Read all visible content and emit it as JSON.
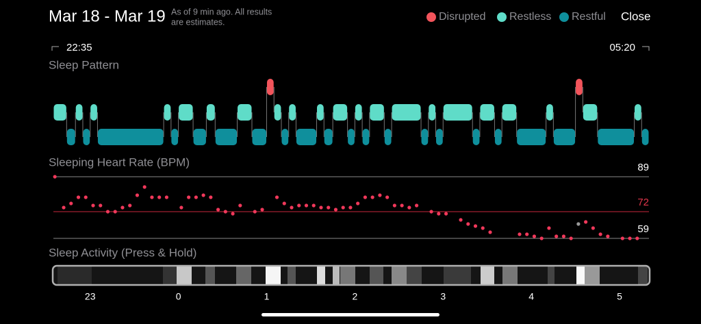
{
  "header": {
    "title": "Mar 18 - Mar 19",
    "note": [
      "As of 9 min ago. All results",
      "are estimates."
    ],
    "legend": [
      {
        "name": "Disrupted",
        "color": "#f2545b"
      },
      {
        "name": "Restless",
        "color": "#5fdcc8"
      },
      {
        "name": "Restful",
        "color": "#0f8f9c"
      }
    ],
    "close": "Close"
  },
  "time_range": {
    "start": "22:35",
    "end": "05:20"
  },
  "sleep_pattern": {
    "title": "Sleep Pattern",
    "segments": [
      {
        "stage": "Restless",
        "minutes": 9
      },
      {
        "stage": "Restful",
        "minutes": 6
      },
      {
        "stage": "Restless",
        "minutes": 5
      },
      {
        "stage": "Restful",
        "minutes": 5
      },
      {
        "stage": "Restless",
        "minutes": 5
      },
      {
        "stage": "Restful",
        "minutes": 45
      },
      {
        "stage": "Restless",
        "minutes": 5
      },
      {
        "stage": "Restful",
        "minutes": 5
      },
      {
        "stage": "Restless",
        "minutes": 10
      },
      {
        "stage": "Restful",
        "minutes": 9
      },
      {
        "stage": "Restless",
        "minutes": 6
      },
      {
        "stage": "Restful",
        "minutes": 15
      },
      {
        "stage": "Restless",
        "minutes": 10
      },
      {
        "stage": "Restful",
        "minutes": 10
      },
      {
        "stage": "Disrupted",
        "minutes": 5
      },
      {
        "stage": "Restless",
        "minutes": 5
      },
      {
        "stage": "Restful",
        "minutes": 5
      },
      {
        "stage": "Restless",
        "minutes": 5
      },
      {
        "stage": "Restful",
        "minutes": 14
      },
      {
        "stage": "Restless",
        "minutes": 5
      },
      {
        "stage": "Restful",
        "minutes": 6
      },
      {
        "stage": "Restless",
        "minutes": 10
      },
      {
        "stage": "Restful",
        "minutes": 5
      },
      {
        "stage": "Restless",
        "minutes": 5
      },
      {
        "stage": "Restful",
        "minutes": 5
      },
      {
        "stage": "Restless",
        "minutes": 10
      },
      {
        "stage": "Restful",
        "minutes": 5
      },
      {
        "stage": "Restless",
        "minutes": 20
      },
      {
        "stage": "Restful",
        "minutes": 5
      },
      {
        "stage": "Restless",
        "minutes": 5
      },
      {
        "stage": "Restful",
        "minutes": 5
      },
      {
        "stage": "Restless",
        "minutes": 20
      },
      {
        "stage": "Restful",
        "minutes": 5
      },
      {
        "stage": "Restless",
        "minutes": 10
      },
      {
        "stage": "Restful",
        "minutes": 5
      },
      {
        "stage": "Restless",
        "minutes": 10
      },
      {
        "stage": "Restful",
        "minutes": 20
      },
      {
        "stage": "Restless",
        "minutes": 5
      },
      {
        "stage": "Restful",
        "minutes": 15
      },
      {
        "stage": "Disrupted",
        "minutes": 5
      },
      {
        "stage": "Restless",
        "minutes": 10
      },
      {
        "stage": "Restful",
        "minutes": 25
      },
      {
        "stage": "Restless",
        "minutes": 5
      },
      {
        "stage": "Restful",
        "minutes": 5
      }
    ]
  },
  "heart_rate": {
    "title": "Sleeping Heart Rate (BPM)",
    "ylim": [
      59,
      89
    ],
    "xlim": [
      0,
      405
    ],
    "color": "#f0385a",
    "reference_lines": [
      {
        "value": 89,
        "color": "#888888",
        "label_color": "#ffffff"
      },
      {
        "value": 72,
        "color": "#c8283c",
        "label_color": "#e0354a"
      },
      {
        "value": 59,
        "color": "#888888",
        "label_color": "#ffffff"
      }
    ],
    "minutes": [
      1,
      7,
      12,
      17,
      22,
      27,
      32,
      37,
      42,
      47,
      52,
      57,
      62,
      67,
      72,
      77,
      87,
      92,
      97,
      102,
      107,
      112,
      117,
      122,
      127,
      137,
      142,
      152,
      157,
      162,
      167,
      172,
      177,
      182,
      187,
      192,
      197,
      202,
      207,
      212,
      217,
      222,
      227,
      232,
      237,
      242,
      247,
      257,
      262,
      267,
      277,
      282,
      287,
      292,
      297,
      317,
      322,
      327,
      332,
      337,
      342,
      347,
      352,
      362,
      367,
      372,
      377,
      387,
      392,
      397
    ],
    "bpm": [
      89,
      74,
      76,
      79,
      79,
      75,
      75,
      72,
      72,
      74,
      75,
      80,
      84,
      79,
      79,
      79,
      74,
      79,
      79,
      80,
      79,
      73,
      72,
      71,
      75,
      72,
      73,
      79,
      76,
      74,
      75,
      75,
      75,
      74,
      74,
      73,
      74,
      74,
      76,
      79,
      79,
      80,
      79,
      75,
      75,
      74,
      75,
      72,
      71,
      71,
      68,
      66,
      65,
      64,
      62,
      61,
      61,
      60,
      59,
      64,
      60,
      60,
      59,
      67,
      64,
      61,
      60,
      59,
      59,
      59
    ],
    "gray_point": {
      "minute": 357,
      "bpm": 66,
      "color": "#9a9a9a"
    }
  },
  "sleep_activity": {
    "title": "Sleep Activity (Press & Hold)",
    "xticks": [
      {
        "value": 25,
        "label": "23"
      },
      {
        "value": 85,
        "label": "0"
      },
      {
        "value": 145,
        "label": "1"
      },
      {
        "value": 205,
        "label": "2"
      },
      {
        "value": 265,
        "label": "3"
      },
      {
        "value": 325,
        "label": "4"
      },
      {
        "value": 385,
        "label": "5"
      }
    ]
  }
}
